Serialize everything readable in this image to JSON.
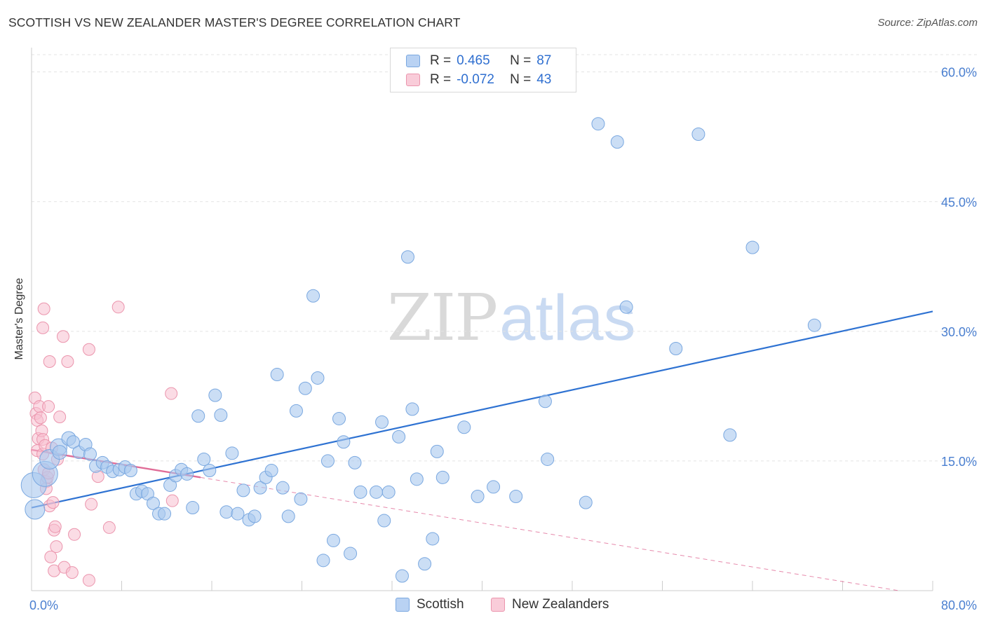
{
  "title": "SCOTTISH VS NEW ZEALANDER MASTER'S DEGREE CORRELATION CHART",
  "source": "Source: ZipAtlas.com",
  "watermark": {
    "left": "ZIP",
    "right": "atlas"
  },
  "legend": {
    "rows": [
      {
        "r_label": "R =",
        "r_value": "0.465",
        "n_label": "N =",
        "n_value": "87"
      },
      {
        "r_label": "R =",
        "r_value": "-0.072",
        "n_label": "N =",
        "n_value": "43"
      }
    ]
  },
  "colors": {
    "scottish_fill": "#a9c8ef",
    "scottish_stroke": "#7aa8e0",
    "scottish_line": "#2e72d2",
    "nz_fill": "#f8c0d0",
    "nz_stroke": "#eb95ad",
    "nz_line": "#e06c97",
    "grid": "#e3e3e3",
    "axis_label": "#4a7fd0"
  },
  "chart_data": {
    "type": "scatter",
    "title": "SCOTTISH VS NEW ZEALANDER MASTER'S DEGREE CORRELATION CHART",
    "xlabel": "",
    "ylabel": "Master's Degree",
    "xlim": [
      0,
      80
    ],
    "ylim": [
      0,
      62
    ],
    "x_tick_labels": [
      {
        "value": 0,
        "label": "0.0%"
      },
      {
        "value": 80,
        "label": "80.0%"
      }
    ],
    "y_tick_labels": [
      {
        "value": 15,
        "label": "15.0%"
      },
      {
        "value": 30,
        "label": "30.0%"
      },
      {
        "value": 45,
        "label": "45.0%"
      },
      {
        "value": 60,
        "label": "60.0%"
      }
    ],
    "x_minor_ticks": [
      0,
      8,
      16,
      24,
      32,
      40,
      48,
      56,
      64,
      72,
      80
    ],
    "series": [
      {
        "name": "Scottish",
        "trend": {
          "x0": 0,
          "y0": 9.6,
          "x1": 80,
          "y1": 32.3
        },
        "points": [
          {
            "x": 0.2,
            "y": 12.2,
            "s": 18
          },
          {
            "x": 0.3,
            "y": 9.4,
            "s": 14
          },
          {
            "x": 1.2,
            "y": 13.5,
            "s": 18
          },
          {
            "x": 1.6,
            "y": 15.2,
            "s": 14
          },
          {
            "x": 2.4,
            "y": 16.6,
            "s": 12
          },
          {
            "x": 2.5,
            "y": 16.0,
            "s": 10
          },
          {
            "x": 3.3,
            "y": 17.6,
            "s": 10
          },
          {
            "x": 3.7,
            "y": 17.2,
            "s": 9
          },
          {
            "x": 4.2,
            "y": 16.0,
            "s": 9
          },
          {
            "x": 4.8,
            "y": 16.9,
            "s": 9
          },
          {
            "x": 5.2,
            "y": 15.8,
            "s": 9
          },
          {
            "x": 5.7,
            "y": 14.4,
            "s": 9
          },
          {
            "x": 6.3,
            "y": 14.8,
            "s": 9
          },
          {
            "x": 6.7,
            "y": 14.3,
            "s": 9
          },
          {
            "x": 7.2,
            "y": 13.8,
            "s": 9
          },
          {
            "x": 7.8,
            "y": 14.0,
            "s": 9
          },
          {
            "x": 8.3,
            "y": 14.3,
            "s": 9
          },
          {
            "x": 8.8,
            "y": 13.9,
            "s": 9
          },
          {
            "x": 9.3,
            "y": 11.2,
            "s": 9
          },
          {
            "x": 9.8,
            "y": 11.5,
            "s": 9
          },
          {
            "x": 10.3,
            "y": 11.2,
            "s": 9
          },
          {
            "x": 10.8,
            "y": 10.1,
            "s": 9
          },
          {
            "x": 11.3,
            "y": 8.9,
            "s": 9
          },
          {
            "x": 11.8,
            "y": 8.9,
            "s": 9
          },
          {
            "x": 12.3,
            "y": 12.2,
            "s": 9
          },
          {
            "x": 12.8,
            "y": 13.3,
            "s": 9
          },
          {
            "x": 13.3,
            "y": 14.0,
            "s": 9
          },
          {
            "x": 13.8,
            "y": 13.5,
            "s": 9
          },
          {
            "x": 14.3,
            "y": 9.6,
            "s": 9
          },
          {
            "x": 14.8,
            "y": 20.2,
            "s": 9
          },
          {
            "x": 15.3,
            "y": 15.2,
            "s": 9
          },
          {
            "x": 15.8,
            "y": 13.9,
            "s": 9
          },
          {
            "x": 16.3,
            "y": 22.6,
            "s": 9
          },
          {
            "x": 16.8,
            "y": 20.3,
            "s": 9
          },
          {
            "x": 17.3,
            "y": 9.1,
            "s": 9
          },
          {
            "x": 17.8,
            "y": 15.9,
            "s": 9
          },
          {
            "x": 18.3,
            "y": 8.9,
            "s": 9
          },
          {
            "x": 18.8,
            "y": 11.6,
            "s": 9
          },
          {
            "x": 19.3,
            "y": 8.2,
            "s": 9
          },
          {
            "x": 19.8,
            "y": 8.6,
            "s": 9
          },
          {
            "x": 20.3,
            "y": 11.9,
            "s": 9
          },
          {
            "x": 20.8,
            "y": 13.1,
            "s": 9
          },
          {
            "x": 21.3,
            "y": 13.9,
            "s": 9
          },
          {
            "x": 21.8,
            "y": 25.0,
            "s": 9
          },
          {
            "x": 22.3,
            "y": 11.9,
            "s": 9
          },
          {
            "x": 22.8,
            "y": 8.6,
            "s": 9
          },
          {
            "x": 23.5,
            "y": 20.8,
            "s": 9
          },
          {
            "x": 23.9,
            "y": 10.6,
            "s": 9
          },
          {
            "x": 24.3,
            "y": 23.4,
            "s": 9
          },
          {
            "x": 25.0,
            "y": 34.1,
            "s": 9
          },
          {
            "x": 25.4,
            "y": 24.6,
            "s": 9
          },
          {
            "x": 25.9,
            "y": 3.5,
            "s": 9
          },
          {
            "x": 26.3,
            "y": 15.0,
            "s": 9
          },
          {
            "x": 26.8,
            "y": 5.8,
            "s": 9
          },
          {
            "x": 27.3,
            "y": 19.9,
            "s": 9
          },
          {
            "x": 27.7,
            "y": 17.2,
            "s": 9
          },
          {
            "x": 28.3,
            "y": 4.3,
            "s": 9
          },
          {
            "x": 28.7,
            "y": 14.8,
            "s": 9
          },
          {
            "x": 29.2,
            "y": 11.4,
            "s": 9
          },
          {
            "x": 30.6,
            "y": 11.4,
            "s": 9
          },
          {
            "x": 31.1,
            "y": 19.5,
            "s": 9
          },
          {
            "x": 31.3,
            "y": 8.1,
            "s": 9
          },
          {
            "x": 31.7,
            "y": 11.4,
            "s": 9
          },
          {
            "x": 32.6,
            "y": 17.8,
            "s": 9
          },
          {
            "x": 32.9,
            "y": 1.7,
            "s": 9
          },
          {
            "x": 33.4,
            "y": 38.6,
            "s": 9
          },
          {
            "x": 33.8,
            "y": 21.0,
            "s": 9
          },
          {
            "x": 34.2,
            "y": 12.9,
            "s": 9
          },
          {
            "x": 34.9,
            "y": 3.1,
            "s": 9
          },
          {
            "x": 35.6,
            "y": 6.0,
            "s": 9
          },
          {
            "x": 36.0,
            "y": 16.1,
            "s": 9
          },
          {
            "x": 36.5,
            "y": 13.1,
            "s": 9
          },
          {
            "x": 38.4,
            "y": 18.9,
            "s": 9
          },
          {
            "x": 39.6,
            "y": 10.9,
            "s": 9
          },
          {
            "x": 41.0,
            "y": 12.0,
            "s": 9
          },
          {
            "x": 43.0,
            "y": 10.9,
            "s": 9
          },
          {
            "x": 45.6,
            "y": 21.9,
            "s": 9
          },
          {
            "x": 45.8,
            "y": 15.2,
            "s": 9
          },
          {
            "x": 49.2,
            "y": 10.2,
            "s": 9
          },
          {
            "x": 50.3,
            "y": 54.0,
            "s": 9
          },
          {
            "x": 52.0,
            "y": 51.9,
            "s": 9
          },
          {
            "x": 52.8,
            "y": 32.8,
            "s": 9
          },
          {
            "x": 57.2,
            "y": 28.0,
            "s": 9
          },
          {
            "x": 59.2,
            "y": 52.8,
            "s": 9
          },
          {
            "x": 62.0,
            "y": 18.0,
            "s": 9
          },
          {
            "x": 64.0,
            "y": 39.7,
            "s": 9
          },
          {
            "x": 69.5,
            "y": 30.7,
            "s": 9
          }
        ]
      },
      {
        "name": "New Zealanders",
        "trend": {
          "x0": 0,
          "y0": 16.3,
          "x1": 15,
          "y1": 13.1,
          "ext_x1": 77,
          "ext_y1": 0
        },
        "points": [
          {
            "x": 0.3,
            "y": 22.3
          },
          {
            "x": 0.4,
            "y": 20.5
          },
          {
            "x": 0.5,
            "y": 19.7
          },
          {
            "x": 0.6,
            "y": 17.6
          },
          {
            "x": 0.5,
            "y": 16.2
          },
          {
            "x": 0.7,
            "y": 21.3
          },
          {
            "x": 0.8,
            "y": 20.0
          },
          {
            "x": 0.9,
            "y": 18.5
          },
          {
            "x": 1.0,
            "y": 17.5
          },
          {
            "x": 1.0,
            "y": 15.8
          },
          {
            "x": 1.1,
            "y": 14.0
          },
          {
            "x": 1.2,
            "y": 16.8
          },
          {
            "x": 1.0,
            "y": 30.4
          },
          {
            "x": 1.1,
            "y": 32.6
          },
          {
            "x": 1.3,
            "y": 12.6
          },
          {
            "x": 1.3,
            "y": 11.8
          },
          {
            "x": 1.4,
            "y": 13.1
          },
          {
            "x": 1.5,
            "y": 21.3
          },
          {
            "x": 1.5,
            "y": 13.6
          },
          {
            "x": 1.6,
            "y": 26.5
          },
          {
            "x": 1.6,
            "y": 9.8
          },
          {
            "x": 1.7,
            "y": 3.9
          },
          {
            "x": 1.8,
            "y": 16.5
          },
          {
            "x": 1.9,
            "y": 10.2
          },
          {
            "x": 2.0,
            "y": 7.0
          },
          {
            "x": 2.0,
            "y": 2.3
          },
          {
            "x": 2.1,
            "y": 7.4
          },
          {
            "x": 2.2,
            "y": 5.1
          },
          {
            "x": 2.5,
            "y": 20.1
          },
          {
            "x": 2.8,
            "y": 29.4
          },
          {
            "x": 2.9,
            "y": 2.7
          },
          {
            "x": 3.2,
            "y": 26.5
          },
          {
            "x": 3.6,
            "y": 2.1
          },
          {
            "x": 3.8,
            "y": 6.5
          },
          {
            "x": 5.1,
            "y": 27.9
          },
          {
            "x": 5.1,
            "y": 1.2
          },
          {
            "x": 5.3,
            "y": 10.0
          },
          {
            "x": 5.9,
            "y": 13.2
          },
          {
            "x": 6.9,
            "y": 7.3
          },
          {
            "x": 7.7,
            "y": 32.8
          },
          {
            "x": 12.4,
            "y": 22.8
          },
          {
            "x": 12.5,
            "y": 10.4
          },
          {
            "x": 2.3,
            "y": 15.2
          }
        ]
      }
    ]
  },
  "bottom_legend": [
    {
      "label": "Scottish"
    },
    {
      "label": "New Zealanders"
    }
  ]
}
